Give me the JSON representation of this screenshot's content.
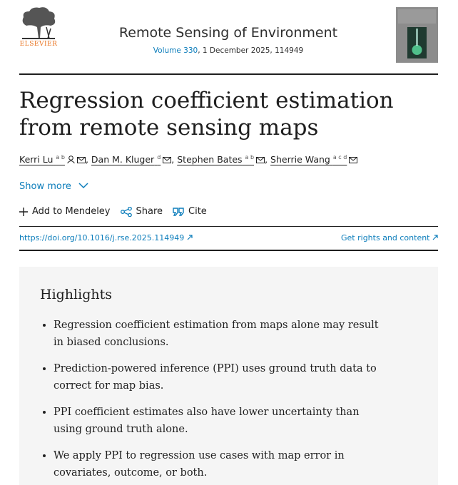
{
  "header": {
    "publisher": "ELSEVIER",
    "journal": "Remote Sensing of Environment",
    "volume": "Volume 330",
    "issue_info": ", 1 December 2025, 114949"
  },
  "article": {
    "title": "Regression coefficient estimation from remote sensing maps",
    "author_separator": ",",
    "authors": [
      {
        "name": "Kerri Lu",
        "affiliations": "a b"
      },
      {
        "name": "Dan M. Kluger",
        "affiliations": "d"
      },
      {
        "name": "Stephen Bates",
        "affiliations": "a b"
      },
      {
        "name": "Sherrie Wang",
        "affiliations": "a c d"
      }
    ],
    "show_more": "Show more",
    "actions": [
      "Add to Mendeley",
      "Share",
      "Cite"
    ],
    "doi": "https://doi.org/10.1016/j.rse.2025.114949",
    "rights": "Get rights and content"
  },
  "highlights": {
    "heading": "Highlights",
    "items": [
      "Regression coefficient estimation from maps alone may result in biased conclusions.",
      "Prediction-powered inference (PPI) uses ground truth data to correct for map bias.",
      "PPI coefficient estimates also have lower uncertainty than using ground truth alone.",
      "We apply PPI to regression use cases with map error in covariates, outcome, or both."
    ]
  }
}
